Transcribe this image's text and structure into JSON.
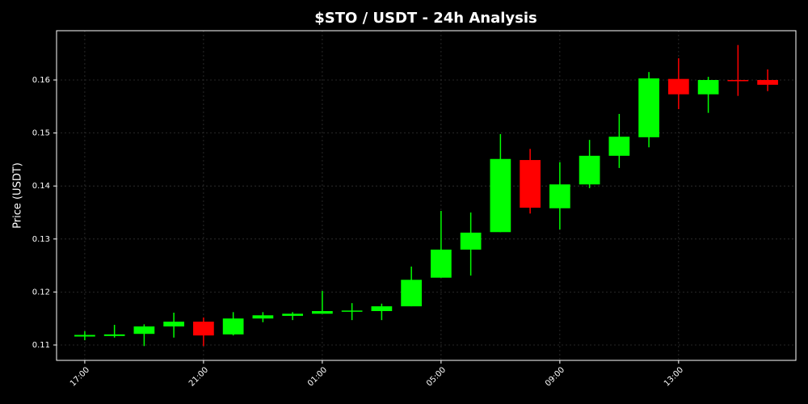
{
  "chart_data": {
    "type": "candlestick",
    "title": "$STO / USDT - 24h Analysis",
    "y_label": "Price (USDT)",
    "categories": [
      "17:00",
      null,
      null,
      null,
      "21:00",
      null,
      null,
      null,
      "01:00",
      null,
      null,
      null,
      "05:00",
      null,
      null,
      null,
      "09:00",
      null,
      null,
      null,
      "13:00",
      null,
      null,
      null
    ],
    "open": [
      0.1116,
      0.1117,
      0.1121,
      0.1135,
      0.1144,
      0.112,
      0.115,
      0.1155,
      0.1159,
      0.1164,
      0.1164,
      0.1173,
      0.1227,
      0.128,
      0.1313,
      0.1449,
      0.1358,
      0.1403,
      0.1457,
      0.1492,
      0.1602,
      0.1573,
      0.16,
      0.16
    ],
    "high": [
      0.1126,
      0.1138,
      0.1139,
      0.1161,
      0.1152,
      0.1162,
      0.1162,
      0.1162,
      0.1202,
      0.1179,
      0.1178,
      0.1248,
      0.1353,
      0.135,
      0.1498,
      0.147,
      0.1445,
      0.1487,
      0.1536,
      0.1615,
      0.1641,
      0.1606,
      0.1666,
      0.162
    ],
    "low": [
      0.1109,
      0.1114,
      0.1098,
      0.1114,
      0.1098,
      0.1118,
      0.1143,
      0.1147,
      0.1159,
      0.1147,
      0.1147,
      0.1173,
      0.1227,
      0.1231,
      0.1313,
      0.1348,
      0.1318,
      0.1396,
      0.1434,
      0.1473,
      0.1545,
      0.1538,
      0.157,
      0.1579
    ],
    "close": [
      0.1119,
      0.112,
      0.1135,
      0.1144,
      0.1118,
      0.115,
      0.1156,
      0.1159,
      0.1164,
      0.1165,
      0.1173,
      0.1223,
      0.128,
      0.1312,
      0.1451,
      0.1359,
      0.1403,
      0.1457,
      0.1493,
      0.1603,
      0.1573,
      0.16,
      0.1598,
      0.1591
    ],
    "up_color": "#00ff00",
    "down_color": "#ff0000",
    "ylim": [
      0.1071,
      0.1693
    ],
    "yticks": [
      0.11,
      0.12,
      0.13,
      0.14,
      0.15,
      0.16
    ],
    "grid": true
  }
}
